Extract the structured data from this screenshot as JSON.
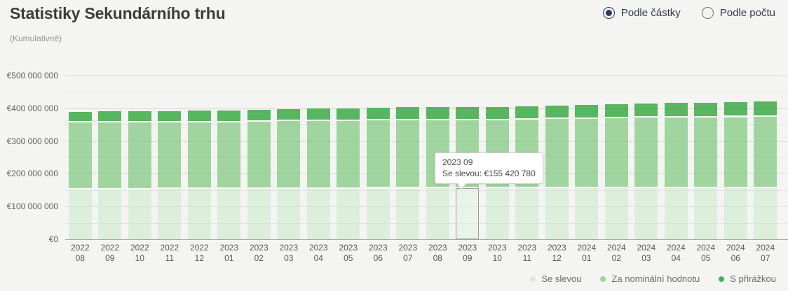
{
  "header": {
    "title": "Statistiky Sekundárního trhu",
    "subtitle": "(Kumulativně)",
    "view_options": [
      {
        "label": "Podle částky",
        "selected": true
      },
      {
        "label": "Podle počtu",
        "selected": false
      }
    ]
  },
  "colors": {
    "background": "#f4f4f2",
    "accent_navy": "#2c3e5d",
    "series_light_green": "#dcefdb",
    "series_medium_green": "#a1d59f",
    "series_dark_green": "#57b65f",
    "hover_highlight_fill": "#e8f4e7",
    "hover_highlight_border": "#9f9f9d"
  },
  "chart_data": {
    "type": "bar",
    "stacked": true,
    "grid": true,
    "legend_position": "bottom-right",
    "ylim": [
      0,
      500000000
    ],
    "y_major_step": 100000000,
    "y_minor_step": 50000000,
    "y_tick_labels": [
      "€0",
      "€100 000 000",
      "€200 000 000",
      "€300 000 000",
      "€400 000 000",
      "€500 000 000"
    ],
    "categories": [
      "2022 08",
      "2022 09",
      "2022 10",
      "2022 11",
      "2022 12",
      "2023 01",
      "2023 02",
      "2023 03",
      "2023 04",
      "2023 05",
      "2023 06",
      "2023 07",
      "2023 08",
      "2023 09",
      "2023 10",
      "2023 11",
      "2023 12",
      "2024 01",
      "2024 02",
      "2024 03",
      "2024 04",
      "2024 05",
      "2024 06",
      "2024 07"
    ],
    "series": [
      {
        "name": "Se slevou",
        "color": "#dcefdb",
        "legend_dot_color": "#d5ecd4",
        "values": [
          152000000,
          152300000,
          152600000,
          152900000,
          153200000,
          153500000,
          153800000,
          154100000,
          154400000,
          154600000,
          154800000,
          155000000,
          155200000,
          155420780,
          155600000,
          155800000,
          155900000,
          156000000,
          156100000,
          156200000,
          156300000,
          156400000,
          156500000,
          156800000
        ]
      },
      {
        "name": "Za nominální hodnotu",
        "color": "#a1d59f",
        "legend_dot_color": "#9ed49c",
        "values": [
          204000000,
          204200000,
          204400000,
          203600000,
          203800000,
          204000000,
          205200000,
          206400000,
          206600000,
          206900000,
          208200000,
          208500000,
          207800000,
          208100000,
          208400000,
          208700000,
          211000000,
          212400000,
          213800000,
          215200000,
          215600000,
          216000000,
          216400000,
          217200000
        ]
      },
      {
        "name": "S přirážkou",
        "color": "#57b65f",
        "legend_dot_color": "#4cae54",
        "values": [
          34000000,
          34500000,
          35000000,
          35500000,
          36000000,
          36500000,
          37000000,
          37500000,
          38000000,
          38500000,
          39000000,
          39500000,
          40000000,
          40500000,
          41000000,
          41500000,
          42000000,
          42500000,
          43000000,
          43500000,
          44000000,
          44500000,
          45000000,
          46000000
        ]
      }
    ],
    "tooltip": {
      "category": "2023 09",
      "series_label": "Se slevou",
      "value_text": "€155 420 780",
      "hover_index": 13,
      "hover_series": 0
    }
  }
}
